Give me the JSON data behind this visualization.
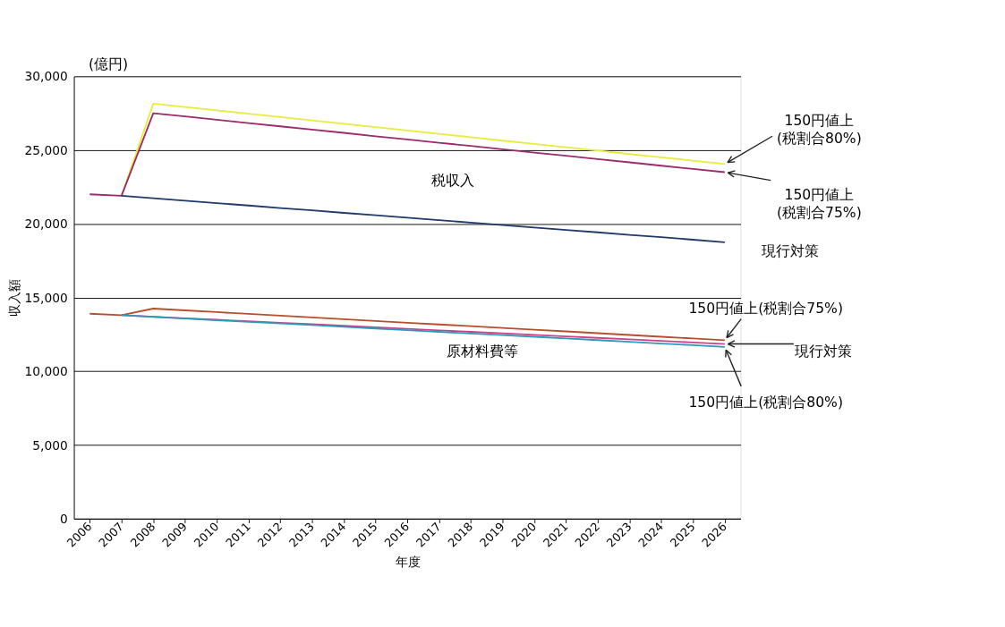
{
  "chart_data": {
    "type": "line",
    "xlabel": "年度",
    "ylabel": "収入額",
    "categories": [
      "2006",
      "2007",
      "2008",
      "2009",
      "2010",
      "2011",
      "2012",
      "2013",
      "2014",
      "2015",
      "2016",
      "2017",
      "2018",
      "2019",
      "2020",
      "2021",
      "2022",
      "2023",
      "2024",
      "2025",
      "2026"
    ],
    "series": [
      {
        "color": "#e8ec3c",
        "values": [
          null,
          21900,
          28150,
          27920,
          27690,
          27470,
          27240,
          27010,
          26780,
          26560,
          26330,
          26100,
          25870,
          25640,
          25420,
          25190,
          24960,
          24730,
          24510,
          24280,
          24050
        ]
      },
      {
        "color": "#9b2a6e",
        "values": [
          22000,
          21900,
          27500,
          27280,
          27060,
          26830,
          26610,
          26390,
          26170,
          25940,
          25720,
          25500,
          25280,
          25060,
          24830,
          24610,
          24390,
          24170,
          23940,
          23720,
          23500
        ]
      },
      {
        "color": "#1f3a6b",
        "values": [
          null,
          21900,
          21730,
          21570,
          21400,
          21240,
          21070,
          20910,
          20740,
          20580,
          20410,
          20250,
          20080,
          19910,
          19750,
          19580,
          19420,
          19250,
          19090,
          18920,
          18750
        ]
      },
      {
        "color": "#b5502d",
        "values": [
          13900,
          13800,
          14250,
          14130,
          14010,
          13890,
          13770,
          13650,
          13530,
          13410,
          13290,
          13170,
          13060,
          12940,
          12820,
          12700,
          12580,
          12460,
          12340,
          12220,
          12100
        ]
      },
      {
        "color": "#d0408a",
        "values": [
          null,
          13800,
          13700,
          13590,
          13490,
          13390,
          13290,
          13190,
          13080,
          12980,
          12880,
          12770,
          12670,
          12570,
          12470,
          12360,
          12260,
          12160,
          12060,
          11950,
          11850
        ]
      },
      {
        "color": "#2a9bb8",
        "values": [
          null,
          13800,
          13690,
          13570,
          13460,
          13350,
          13240,
          13130,
          13010,
          12900,
          12790,
          12670,
          12560,
          12450,
          12340,
          12220,
          12110,
          12000,
          11880,
          11770,
          11650
        ]
      }
    ],
    "ylim": [
      0,
      30000
    ],
    "yticks": [
      0,
      {
        "value": 5000,
        "label": "5,000"
      },
      {
        "value": 10000,
        "label": "10,000"
      },
      {
        "value": 15000,
        "label": "15,000"
      },
      {
        "value": 20000,
        "label": "20,000"
      },
      {
        "value": 25000,
        "label": "25,000"
      },
      {
        "value": 30000,
        "label": "30,000"
      }
    ],
    "grid": "y",
    "marker": "none",
    "line_style": "solid",
    "annotations": [
      "(億円)",
      "税収入",
      "原材料費等",
      {
        "text": "150円値上\n(税割合80%)",
        "x": "2026",
        "y": 24050
      },
      {
        "text": "150円値上\n(税割合75%)",
        "x": "2026",
        "y": 23500
      },
      {
        "text": "現行対策",
        "x": "2026",
        "y": 18750
      },
      {
        "text": "150円値上(税割合75%)",
        "x": "2026",
        "y": 12100
      },
      {
        "text": "現行対策",
        "x": "2026",
        "y": 11850
      },
      {
        "text": "150円値上(税割合80%)",
        "x": "2026",
        "y": 11650
      }
    ]
  }
}
